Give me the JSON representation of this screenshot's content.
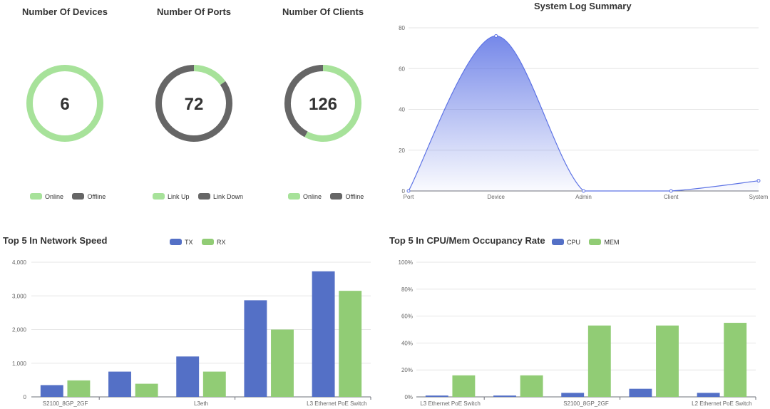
{
  "colors": {
    "green": "#a7e29a",
    "gray": "#666666",
    "blue": "#5470c6",
    "barGreen": "#91cc75",
    "area": "#5d73e5"
  },
  "donuts": [
    {
      "title": "Number Of Devices",
      "value": "6",
      "segments": [
        {
          "name": "Online",
          "value": 6,
          "color": "#a7e29a"
        },
        {
          "name": "Offline",
          "value": 0,
          "color": "#666666"
        }
      ]
    },
    {
      "title": "Number Of Ports",
      "value": "72",
      "segments": [
        {
          "name": "Link Up",
          "value": 11,
          "color": "#a7e29a"
        },
        {
          "name": "Link Down",
          "value": 61,
          "color": "#666666"
        }
      ]
    },
    {
      "title": "Number Of Clients",
      "value": "126",
      "segments": [
        {
          "name": "Online",
          "value": 73,
          "color": "#a7e29a"
        },
        {
          "name": "Offline",
          "value": 53,
          "color": "#666666"
        }
      ]
    }
  ],
  "chart_data": [
    {
      "type": "area",
      "title": "System Log Summary",
      "categories": [
        "Port",
        "Device",
        "Admin",
        "Client",
        "System"
      ],
      "values": [
        0,
        76,
        0,
        0,
        5
      ],
      "ylim": [
        0,
        80
      ],
      "yticks": [
        0,
        20,
        40,
        60,
        80
      ]
    },
    {
      "type": "bar",
      "title": "Top 5 In Network Speed",
      "legend": [
        "TX",
        "RX"
      ],
      "category_labels": [
        "S2100_8GP_2GF",
        "",
        "L3eth",
        "",
        "L3 Ethernet PoE Switch"
      ],
      "series": [
        {
          "name": "TX",
          "values": [
            350,
            750,
            1200,
            2870,
            3730
          ]
        },
        {
          "name": "RX",
          "values": [
            490,
            390,
            750,
            2000,
            3150
          ]
        }
      ],
      "ylim": [
        0,
        4000
      ],
      "yticks": [
        "0",
        "1,000",
        "2,000",
        "3,000",
        "4,000"
      ]
    },
    {
      "type": "bar",
      "title": "Top 5 In CPU/Mem Occupancy Rate",
      "legend": [
        "CPU",
        "MEM"
      ],
      "category_labels": [
        "L3 Ethernet PoE Switch",
        "",
        "S2100_8GP_2GF",
        "",
        "L2 Ethernet PoE Switch"
      ],
      "series": [
        {
          "name": "CPU",
          "values": [
            1,
            1,
            3,
            6,
            3
          ]
        },
        {
          "name": "MEM",
          "values": [
            16,
            16,
            53,
            53,
            55
          ]
        }
      ],
      "ylim": [
        0,
        100
      ],
      "yticks": [
        "0%",
        "20%",
        "40%",
        "60%",
        "80%",
        "100%"
      ]
    }
  ]
}
